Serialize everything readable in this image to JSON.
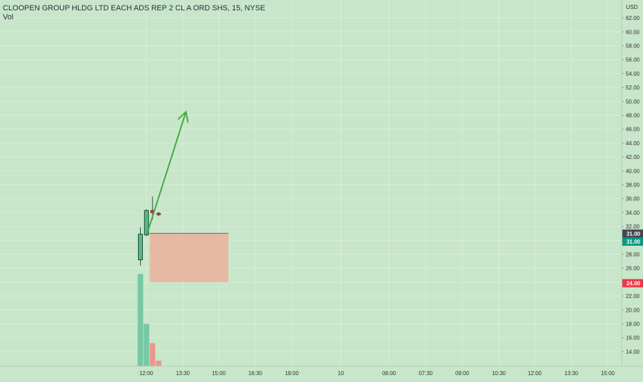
{
  "header": {
    "title": "CLOOPEN GROUP HLDG LTD EACH ADS REP 2 CL A ORD SHS, 15, NYSE",
    "volume_label": "Vol",
    "currency": "USD"
  },
  "colors": {
    "background": "#c8e6c9",
    "grid": "#d9edda",
    "axis_text": "#333333",
    "candle_up": "#56b88a",
    "candle_outline": "#1f4d36",
    "vol_up": "#76c8a6",
    "vol_down": "#e8998f",
    "arrow": "#3faa3f",
    "zone_fill": "#e7b8a4",
    "zone_edge": "#6a5a52",
    "price_badge_dark": "#434651",
    "price_badge_green": "#089981",
    "price_badge_red": "#f23645",
    "marker_red": "#e53935"
  },
  "chart_data": {
    "type": "candlestick",
    "title": "CLOOPEN GROUP HLDG LTD EACH ADS REP 2 CL A ORD SHS, 15, NYSE",
    "interval": "15",
    "exchange": "NYSE",
    "y_unit": "USD",
    "ylim": [
      12.5,
      63
    ],
    "y_ticks": [
      14,
      16,
      18,
      20,
      22,
      24,
      26,
      28,
      30,
      32,
      34,
      36,
      38,
      40,
      42,
      44,
      46,
      48,
      50,
      52,
      54,
      56,
      58,
      60,
      62
    ],
    "y_tick_labels": [
      "14.00",
      "16.00",
      "18.00",
      "20.00",
      "22.00",
      "24.00",
      "26.00",
      "28.00",
      "30.00",
      "32.00",
      "34.00",
      "36.00",
      "38.00",
      "40.00",
      "42.00",
      "44.00",
      "46.00",
      "48.00",
      "50.00",
      "52.00",
      "54.00",
      "56.00",
      "58.00",
      "60.00",
      "62.00"
    ],
    "x_tick_labels": [
      "12:00",
      "13:30",
      "15:00",
      "16:30",
      "18:00",
      "10",
      "06:00",
      "07:30",
      "09:00",
      "10:30",
      "12:00",
      "13:30",
      "15:00"
    ],
    "candles": [
      {
        "open": 27.2,
        "high": 31.9,
        "low": 26.4,
        "close": 30.9
      },
      {
        "open": 30.8,
        "high": 34.5,
        "low": 30.6,
        "close": 34.3
      },
      {
        "open": 34.3,
        "high": 36.3,
        "low": 33.0,
        "close": 34.0
      },
      {
        "open": 33.9,
        "high": 34.1,
        "low": 33.5,
        "close": 33.7
      }
    ],
    "volume": {
      "ylim": [
        0,
        100
      ],
      "values": [
        100,
        46,
        25,
        6
      ],
      "directions": [
        "up",
        "up",
        "down",
        "down"
      ]
    },
    "price_labels": [
      {
        "value": "31.00",
        "style": "dark"
      },
      {
        "value": "31.00",
        "style": "green"
      },
      {
        "value": "24.00",
        "style": "red"
      }
    ],
    "annotations": {
      "arrow": {
        "from_candle": 1,
        "from_price": 31.0,
        "to_candle": 7.5,
        "to_price": 48.5
      },
      "zone": {
        "from_candle": 1.5,
        "to_candle": 14.5,
        "top": 31.0,
        "bottom": 24.0
      }
    }
  }
}
